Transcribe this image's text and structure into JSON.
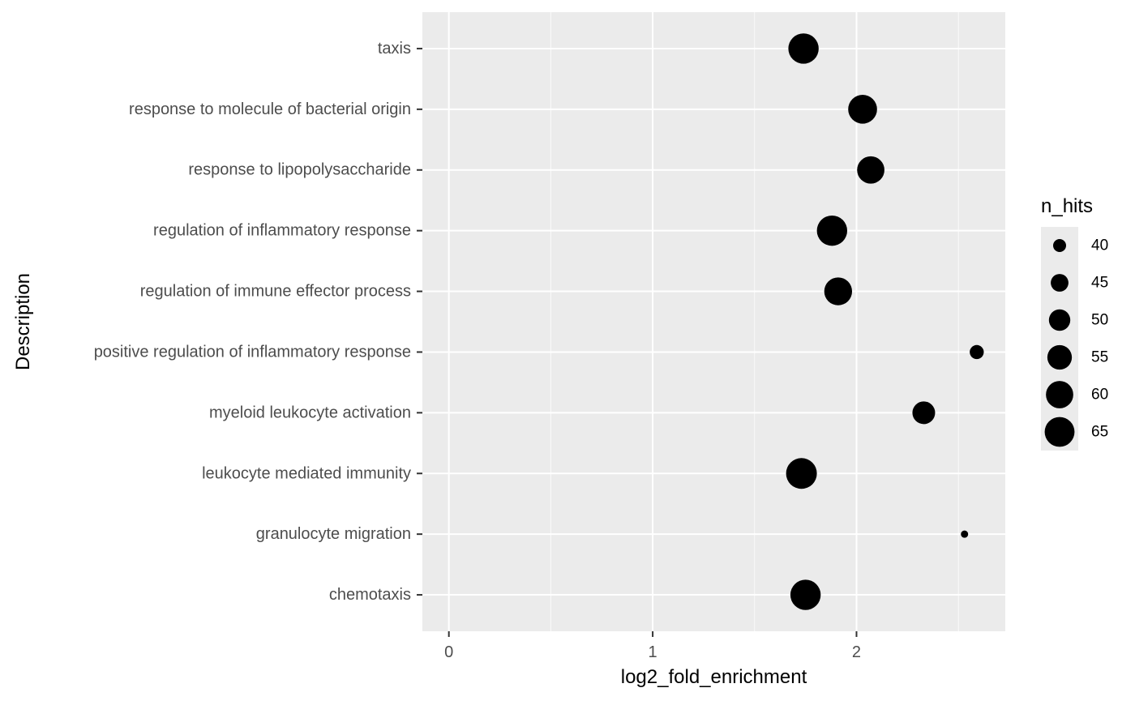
{
  "chart_data": {
    "type": "scatter",
    "xlabel": "log2_fold_enrichment",
    "ylabel": "Description",
    "xlim": [
      -0.13,
      2.73
    ],
    "x_ticks": [
      {
        "value": 0,
        "label": "0"
      },
      {
        "value": 1,
        "label": "1"
      },
      {
        "value": 2,
        "label": "2"
      }
    ],
    "x_minor_ticks": [
      0.5,
      1.5,
      2.5
    ],
    "categories": [
      "taxis",
      "response to molecule of bacterial origin",
      "response to lipopolysaccharide",
      "regulation of inflammatory response",
      "regulation of immune effector process",
      "positive regulation of inflammatory response",
      "myeloid leukocyte activation",
      "leukocyte mediated immunity",
      "granulocyte migration",
      "chemotaxis"
    ],
    "points": [
      {
        "category": "taxis",
        "x": 1.74,
        "n_hits": 66
      },
      {
        "category": "response to molecule of bacterial origin",
        "x": 2.03,
        "n_hits": 63
      },
      {
        "category": "response to lipopolysaccharide",
        "x": 2.07,
        "n_hits": 60
      },
      {
        "category": "regulation of inflammatory response",
        "x": 1.88,
        "n_hits": 66
      },
      {
        "category": "regulation of immune effector process",
        "x": 1.91,
        "n_hits": 61
      },
      {
        "category": "positive regulation of inflammatory response",
        "x": 2.59,
        "n_hits": 41
      },
      {
        "category": "myeloid leukocyte activation",
        "x": 2.33,
        "n_hits": 52
      },
      {
        "category": "leukocyte mediated immunity",
        "x": 1.73,
        "n_hits": 67
      },
      {
        "category": "granulocyte migration",
        "x": 2.53,
        "n_hits": 36
      },
      {
        "category": "chemotaxis",
        "x": 1.75,
        "n_hits": 66
      }
    ],
    "size_legend": {
      "title": "n_hits",
      "entries": [
        {
          "value": 40,
          "label": "40"
        },
        {
          "value": 45,
          "label": "45"
        },
        {
          "value": 50,
          "label": "50"
        },
        {
          "value": 55,
          "label": "55"
        },
        {
          "value": 60,
          "label": "60"
        },
        {
          "value": 65,
          "label": "65"
        }
      ]
    },
    "size_range": [
      36,
      67
    ],
    "grid": true,
    "legend_position": "right",
    "colors": {
      "panel_background": "#ebebeb",
      "grid_line": "#ffffff",
      "point": "#000000",
      "tick_mark": "#333333",
      "tick_text": "#4d4d4d"
    }
  }
}
